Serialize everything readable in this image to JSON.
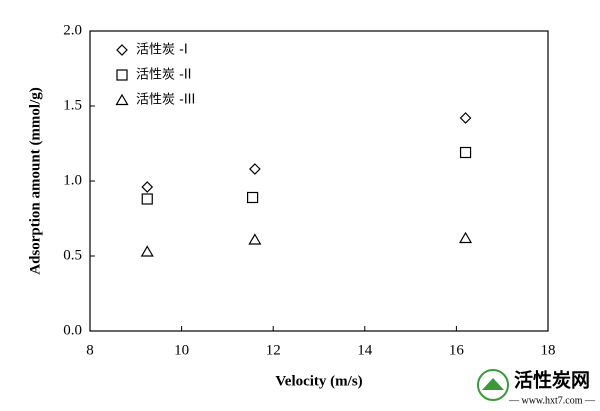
{
  "chart_data": {
    "type": "scatter",
    "xlabel": "Velocity (m/s)",
    "ylabel": "Adsorption amount (mmol/g)",
    "xlim": [
      8,
      18
    ],
    "xticks": [
      8,
      10,
      12,
      14,
      16,
      18
    ],
    "ylim": [
      0,
      2
    ],
    "yticks": [
      {
        "value": 0,
        "label": "0.0"
      },
      {
        "value": 0.5,
        "label": "0.5"
      },
      {
        "value": 1,
        "label": "1.0"
      },
      {
        "value": 1.5,
        "label": "1.5"
      },
      {
        "value": 2,
        "label": "2.0"
      }
    ],
    "legend": "upper-left",
    "series": [
      {
        "name": "活性炭 -I",
        "marker": "diamond",
        "color": "#000000",
        "x": [
          9.25,
          11.6,
          16.2
        ],
        "values": [
          0.96,
          1.08,
          1.42
        ]
      },
      {
        "name": "活性炭 -II",
        "marker": "square",
        "color": "#000000",
        "x": [
          9.25,
          11.55,
          16.2
        ],
        "values": [
          0.88,
          0.89,
          1.19
        ]
      },
      {
        "name": "活性炭 -III",
        "marker": "triangle",
        "color": "#000000",
        "x": [
          9.25,
          11.6,
          16.2
        ],
        "values": [
          0.53,
          0.61,
          0.62
        ]
      }
    ]
  },
  "watermark": {
    "title": "活性炭网",
    "url": "— www.hxt7.com —"
  }
}
